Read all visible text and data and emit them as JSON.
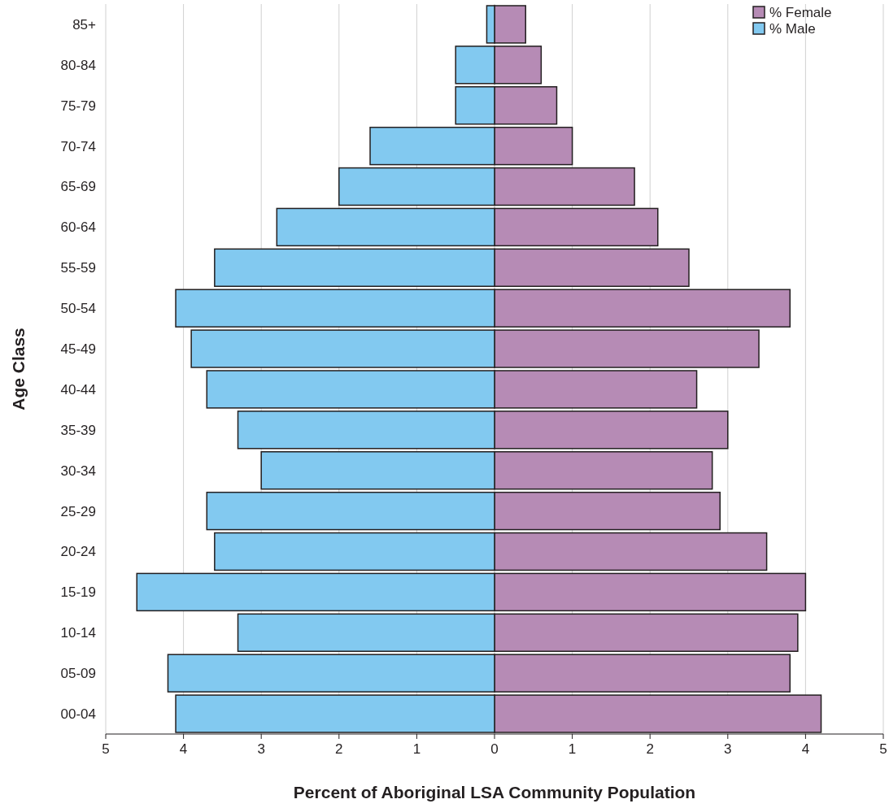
{
  "chart_data": {
    "type": "bar",
    "orientation": "horizontal",
    "stacked": true,
    "xlabel": "Percent of Aboriginal LSA Community Population",
    "ylabel": "Age Class",
    "categories": [
      "85+",
      "80-84",
      "75-79",
      "70-74",
      "65-69",
      "60-64",
      "55-59",
      "50-54",
      "45-49",
      "40-44",
      "35-39",
      "30-34",
      "25-29",
      "20-24",
      "15-19",
      "10-14",
      "05-09",
      "00-04"
    ],
    "series": [
      {
        "name": "% Female",
        "color": "#b68bb5",
        "values": [
          0.4,
          0.6,
          0.8,
          1.0,
          1.8,
          2.1,
          2.5,
          3.8,
          3.4,
          2.6,
          3.0,
          2.8,
          2.9,
          3.5,
          4.0,
          3.9,
          3.8,
          4.2
        ]
      },
      {
        "name": "% Male",
        "color": "#82c9f0",
        "values": [
          -0.1,
          -0.5,
          -0.5,
          -1.6,
          -2.0,
          -2.8,
          -3.6,
          -4.1,
          -3.9,
          -3.7,
          -3.3,
          -3.0,
          -3.7,
          -3.6,
          -4.6,
          -3.3,
          -4.2,
          -4.1
        ]
      }
    ],
    "xlim": [
      -5,
      5
    ],
    "xticks": [
      {
        "value": -5,
        "label": "5"
      },
      {
        "value": -4,
        "label": "4"
      },
      {
        "value": -3,
        "label": "3"
      },
      {
        "value": -2,
        "label": "2"
      },
      {
        "value": -1,
        "label": "1"
      },
      0,
      1,
      2,
      3,
      4,
      5
    ],
    "grid": "x",
    "legend": "top right"
  }
}
